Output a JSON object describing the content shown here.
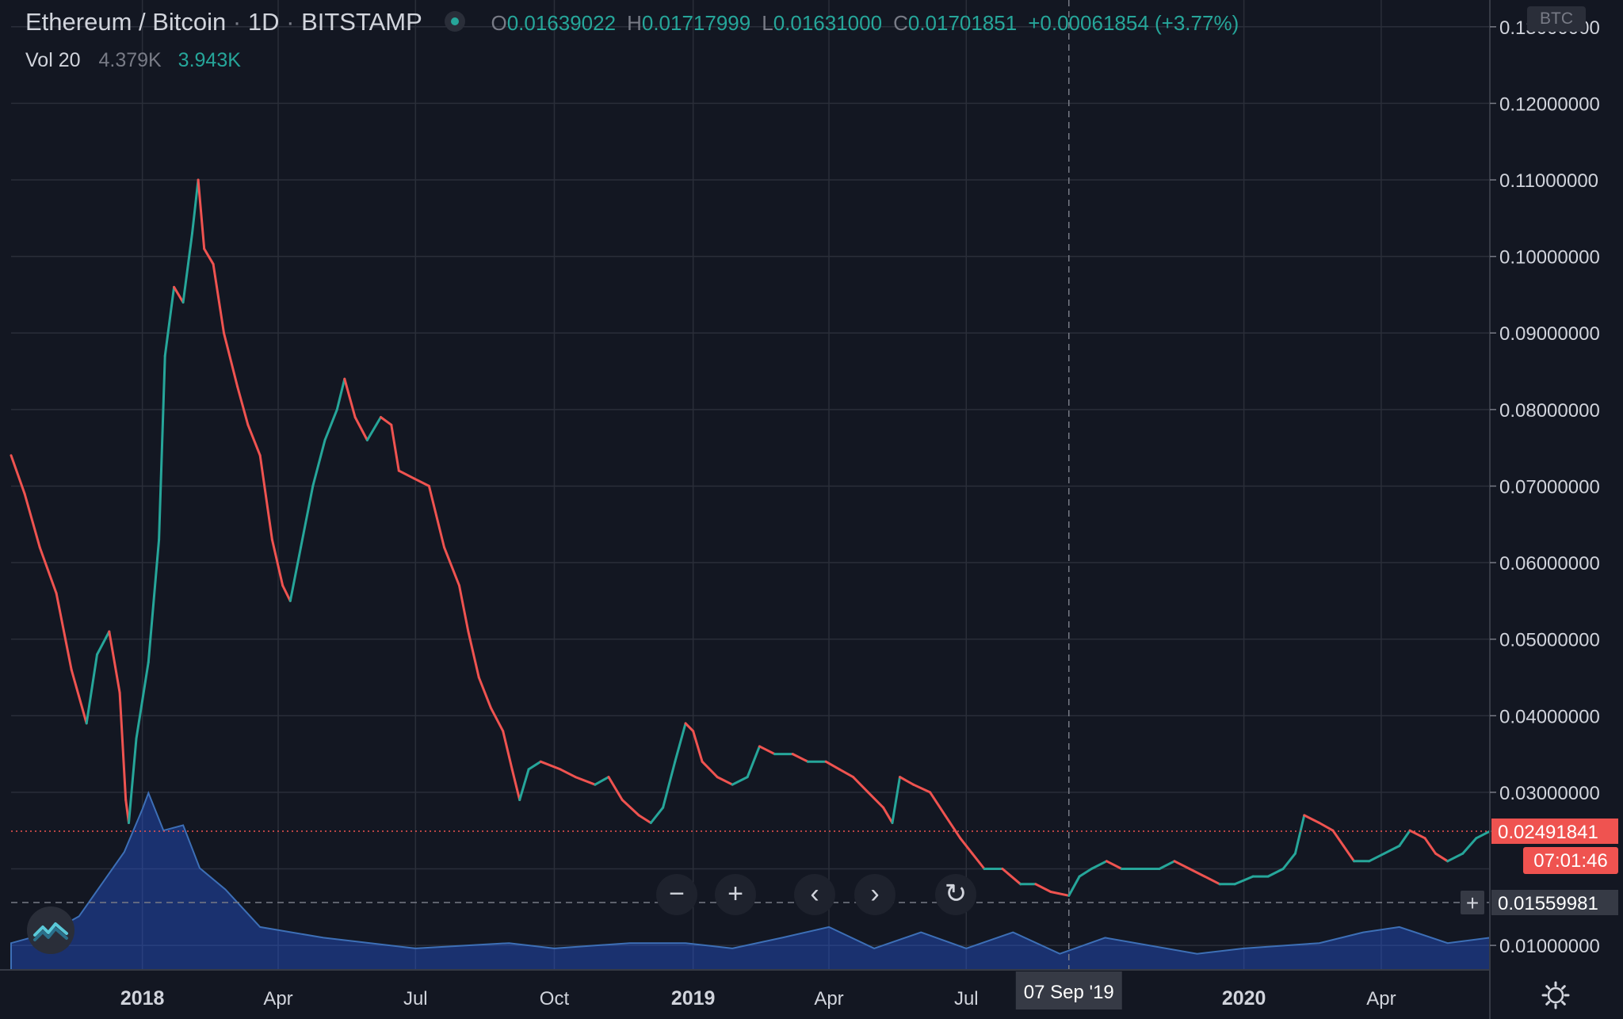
{
  "header": {
    "pair": "Ethereum / Bitcoin",
    "interval": "1D",
    "exchange": "BITSTAMP",
    "open_label": "O",
    "open": "0.01639022",
    "high_label": "H",
    "high": "0.01717999",
    "low_label": "L",
    "low": "0.01631000",
    "close_label": "C",
    "close": "0.01701851",
    "change": "+0.00061854 (+3.77%)"
  },
  "volume": {
    "label": "Vol 20",
    "value1": "4.379K",
    "value2": "3.943K"
  },
  "currency_badge": "BTC",
  "controls": [
    "zoom-out",
    "zoom-in",
    "scroll-left",
    "scroll-right",
    "reset"
  ],
  "colors": {
    "background": "#131722",
    "grid": "#2a2e39",
    "up": "#26a69a",
    "down": "#ef5350",
    "volume": "#2962ff"
  },
  "chart_data": {
    "type": "line",
    "x_ticks": [
      "2018",
      "Apr",
      "Jul",
      "Oct",
      "2019",
      "Apr",
      "Jul",
      "2020",
      "Apr"
    ],
    "x_dates": [
      "2018-01-01",
      "2018-04-01",
      "2018-07-01",
      "2018-10-01",
      "2019-01-01",
      "2019-04-01",
      "2019-07-01",
      "2020-01-01",
      "2020-04-01"
    ],
    "y_ticks": [
      "0.13000000",
      "0.12000000",
      "0.11000000",
      "0.10000000",
      "0.09000000",
      "0.08000000",
      "0.07000000",
      "0.06000000",
      "0.05000000",
      "0.04000000",
      "0.03000000",
      "0.02000000",
      "0.01000000"
    ],
    "ylim": [
      0.0068,
      0.1335
    ],
    "x_range": [
      "2017-10-06",
      "2020-06-12"
    ],
    "scale": "linear",
    "grid": true,
    "series": [
      {
        "values": [
          [
            "2017-10-06",
            0.074
          ],
          [
            "2017-10-15",
            0.069
          ],
          [
            "2017-10-25",
            0.062
          ],
          [
            "2017-11-05",
            0.056
          ],
          [
            "2017-11-15",
            0.046
          ],
          [
            "2017-11-25",
            0.039
          ],
          [
            "2017-12-02",
            0.048
          ],
          [
            "2017-12-10",
            0.051
          ],
          [
            "2017-12-17",
            0.043
          ],
          [
            "2017-12-21",
            0.029
          ],
          [
            "2017-12-23",
            0.026
          ],
          [
            "2017-12-28",
            0.037
          ],
          [
            "2018-01-05",
            0.047
          ],
          [
            "2018-01-12",
            0.063
          ],
          [
            "2018-01-16",
            0.087
          ],
          [
            "2018-01-22",
            0.096
          ],
          [
            "2018-01-28",
            0.094
          ],
          [
            "2018-02-03",
            0.103
          ],
          [
            "2018-02-07",
            0.11
          ],
          [
            "2018-02-11",
            0.101
          ],
          [
            "2018-02-17",
            0.099
          ],
          [
            "2018-02-24",
            0.09
          ],
          [
            "2018-03-05",
            0.083
          ],
          [
            "2018-03-12",
            0.078
          ],
          [
            "2018-03-20",
            0.074
          ],
          [
            "2018-03-28",
            0.063
          ],
          [
            "2018-04-04",
            0.057
          ],
          [
            "2018-04-09",
            0.055
          ],
          [
            "2018-04-16",
            0.062
          ],
          [
            "2018-04-24",
            0.07
          ],
          [
            "2018-05-02",
            0.076
          ],
          [
            "2018-05-10",
            0.08
          ],
          [
            "2018-05-15",
            0.084
          ],
          [
            "2018-05-22",
            0.079
          ],
          [
            "2018-05-30",
            0.076
          ],
          [
            "2018-06-08",
            0.079
          ],
          [
            "2018-06-15",
            0.078
          ],
          [
            "2018-06-20",
            0.072
          ],
          [
            "2018-06-30",
            0.071
          ],
          [
            "2018-07-10",
            0.07
          ],
          [
            "2018-07-20",
            0.062
          ],
          [
            "2018-07-30",
            0.057
          ],
          [
            "2018-08-05",
            0.051
          ],
          [
            "2018-08-12",
            0.045
          ],
          [
            "2018-08-20",
            0.041
          ],
          [
            "2018-08-28",
            0.038
          ],
          [
            "2018-09-03",
            0.033
          ],
          [
            "2018-09-08",
            0.029
          ],
          [
            "2018-09-14",
            0.033
          ],
          [
            "2018-09-22",
            0.034
          ],
          [
            "2018-10-05",
            0.033
          ],
          [
            "2018-10-15",
            0.032
          ],
          [
            "2018-10-28",
            0.031
          ],
          [
            "2018-11-06",
            0.032
          ],
          [
            "2018-11-15",
            0.029
          ],
          [
            "2018-11-26",
            0.027
          ],
          [
            "2018-12-04",
            0.026
          ],
          [
            "2018-12-12",
            0.028
          ],
          [
            "2018-12-20",
            0.034
          ],
          [
            "2018-12-27",
            0.039
          ],
          [
            "2019-01-01",
            0.038
          ],
          [
            "2019-01-07",
            0.034
          ],
          [
            "2019-01-17",
            0.032
          ],
          [
            "2019-01-27",
            0.031
          ],
          [
            "2019-02-06",
            0.032
          ],
          [
            "2019-02-14",
            0.036
          ],
          [
            "2019-02-24",
            0.035
          ],
          [
            "2019-03-08",
            0.035
          ],
          [
            "2019-03-18",
            0.034
          ],
          [
            "2019-03-30",
            0.034
          ],
          [
            "2019-04-08",
            0.033
          ],
          [
            "2019-04-17",
            0.032
          ],
          [
            "2019-04-27",
            0.03
          ],
          [
            "2019-05-07",
            0.028
          ],
          [
            "2019-05-13",
            0.026
          ],
          [
            "2019-05-18",
            0.032
          ],
          [
            "2019-05-27",
            0.031
          ],
          [
            "2019-06-07",
            0.03
          ],
          [
            "2019-06-17",
            0.027
          ],
          [
            "2019-06-27",
            0.024
          ],
          [
            "2019-07-05",
            0.022
          ],
          [
            "2019-07-13",
            0.02
          ],
          [
            "2019-07-25",
            0.02
          ],
          [
            "2019-08-06",
            0.018
          ],
          [
            "2019-08-16",
            0.018
          ],
          [
            "2019-08-26",
            0.017
          ],
          [
            "2019-09-07",
            0.0165
          ],
          [
            "2019-09-14",
            0.019
          ],
          [
            "2019-09-22",
            0.02
          ],
          [
            "2019-10-02",
            0.021
          ],
          [
            "2019-10-12",
            0.02
          ],
          [
            "2019-10-25",
            0.02
          ],
          [
            "2019-11-06",
            0.02
          ],
          [
            "2019-11-16",
            0.021
          ],
          [
            "2019-11-26",
            0.02
          ],
          [
            "2019-12-06",
            0.019
          ],
          [
            "2019-12-16",
            0.018
          ],
          [
            "2019-12-26",
            0.018
          ],
          [
            "2020-01-07",
            0.019
          ],
          [
            "2020-01-17",
            0.019
          ],
          [
            "2020-01-27",
            0.02
          ],
          [
            "2020-02-04",
            0.022
          ],
          [
            "2020-02-10",
            0.027
          ],
          [
            "2020-02-20",
            0.026
          ],
          [
            "2020-02-29",
            0.025
          ],
          [
            "2020-03-07",
            0.023
          ],
          [
            "2020-03-14",
            0.021
          ],
          [
            "2020-03-24",
            0.021
          ],
          [
            "2020-04-03",
            0.022
          ],
          [
            "2020-04-13",
            0.023
          ],
          [
            "2020-04-20",
            0.025
          ],
          [
            "2020-04-30",
            0.024
          ],
          [
            "2020-05-07",
            0.022
          ],
          [
            "2020-05-15",
            0.021
          ],
          [
            "2020-05-25",
            0.022
          ],
          [
            "2020-06-03",
            0.024
          ],
          [
            "2020-06-12",
            0.0249
          ]
        ]
      },
      {
        "type": "area",
        "values": [
          [
            "2017-10-06",
            0.005
          ],
          [
            "2017-11-01",
            0.007
          ],
          [
            "2017-11-20",
            0.01
          ],
          [
            "2017-12-10",
            0.018
          ],
          [
            "2017-12-20",
            0.022
          ],
          [
            "2018-01-01",
            0.03
          ],
          [
            "2018-01-05",
            0.033
          ],
          [
            "2018-01-15",
            0.026
          ],
          [
            "2018-01-28",
            0.027
          ],
          [
            "2018-02-08",
            0.019
          ],
          [
            "2018-02-25",
            0.015
          ],
          [
            "2018-03-20",
            0.008
          ],
          [
            "2018-05-01",
            0.006
          ],
          [
            "2018-07-01",
            0.004
          ],
          [
            "2018-09-01",
            0.005
          ],
          [
            "2018-10-01",
            0.004
          ],
          [
            "2018-11-20",
            0.005
          ],
          [
            "2018-12-27",
            0.005
          ],
          [
            "2019-01-27",
            0.004
          ],
          [
            "2019-03-01",
            0.006
          ],
          [
            "2019-04-01",
            0.008
          ],
          [
            "2019-05-01",
            0.004
          ],
          [
            "2019-06-01",
            0.007
          ],
          [
            "2019-07-01",
            0.004
          ],
          [
            "2019-08-01",
            0.007
          ],
          [
            "2019-09-01",
            0.003
          ],
          [
            "2019-10-01",
            0.006
          ],
          [
            "2019-12-01",
            0.003
          ],
          [
            "2020-01-01",
            0.004
          ],
          [
            "2020-02-20",
            0.005
          ],
          [
            "2020-03-20",
            0.007
          ],
          [
            "2020-04-13",
            0.008
          ],
          [
            "2020-05-15",
            0.005
          ],
          [
            "2020-06-12",
            0.006
          ]
        ]
      }
    ],
    "last_price": "0.02491841",
    "countdown": "07:01:46",
    "crosshair_price": "0.01559981",
    "crosshair_date": "07 Sep '19"
  }
}
